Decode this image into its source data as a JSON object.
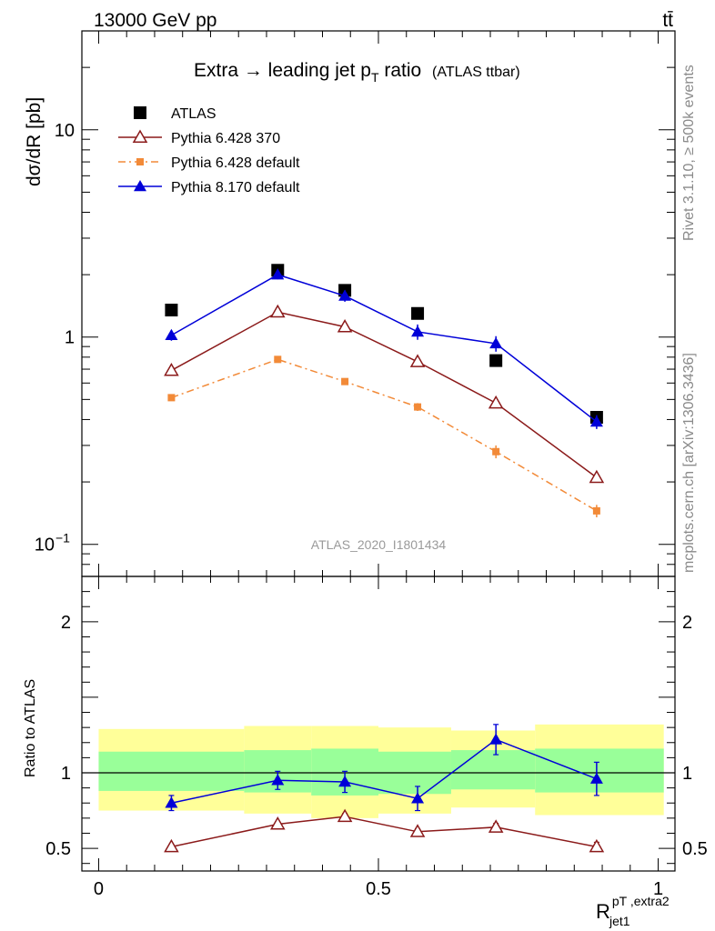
{
  "header": {
    "left_title": "13000 GeV pp",
    "right_title": "tt̄"
  },
  "side_labels": {
    "rivet": "Rivet 3.1.10, ≥ 500k events",
    "mcplots": "mcplots.cern.ch [arXiv:1306.3436]"
  },
  "chart_data": [
    {
      "type": "line",
      "panel": "main",
      "title": "Extra → leading jet p",
      "title_sub": "T",
      "title_tail": " ratio",
      "title_note": "(ATLAS ttbar)",
      "ylabel": "dσ/dR [pb]",
      "watermark": "ATLAS_2020_I1801434",
      "yscale": "log",
      "ylim": [
        0.07,
        30
      ],
      "xlim": [
        -0.03,
        1.03
      ],
      "yticks": [
        {
          "v": 0.1,
          "label": "10",
          "sup": "−1"
        },
        {
          "v": 1,
          "label": "1",
          "sup": ""
        },
        {
          "v": 10,
          "label": "10",
          "sup": ""
        }
      ],
      "legend_position": "top-left",
      "x": [
        0.13,
        0.32,
        0.44,
        0.57,
        0.71,
        0.89
      ],
      "series": [
        {
          "name": "ATLAS",
          "color": "#000000",
          "marker": "square",
          "line": "none",
          "values": [
            1.35,
            2.1,
            1.68,
            1.3,
            0.77,
            0.41
          ],
          "err": [
            0,
            0,
            0,
            0,
            0,
            0
          ]
        },
        {
          "name": "Pythia 6.428 370",
          "color": "#8b1a1a",
          "marker": "triangle-open",
          "line": "solid",
          "values": [
            0.69,
            1.32,
            1.12,
            0.76,
            0.48,
            0.21
          ],
          "err": [
            0.02,
            0.04,
            0.03,
            0.02,
            0.015,
            0.009
          ]
        },
        {
          "name": "Pythia 6.428 default",
          "color": "#f28a38",
          "marker": "square-small",
          "line": "dashdot",
          "values": [
            0.51,
            0.78,
            0.61,
            0.46,
            0.28,
            0.145
          ],
          "err": [
            0.015,
            0.02,
            0.02,
            0.02,
            0.02,
            0.01
          ]
        },
        {
          "name": "Pythia 8.170 default",
          "color": "#0000d8",
          "marker": "triangle",
          "line": "solid",
          "values": [
            1.02,
            2.0,
            1.58,
            1.06,
            0.93,
            0.39
          ],
          "err": [
            0.06,
            0.1,
            0.1,
            0.09,
            0.08,
            0.03
          ]
        }
      ]
    },
    {
      "type": "line",
      "panel": "ratio",
      "ylabel": "Ratio to ATLAS",
      "xlabel": "R",
      "xlabel_sup": "pT ,extra2",
      "xlabel_sub": "jet1",
      "ylim": [
        0.35,
        2.3
      ],
      "xlim": [
        -0.03,
        1.03
      ],
      "yticks": [
        0.5,
        1,
        2
      ],
      "xticks": [
        {
          "v": 0,
          "label": "0"
        },
        {
          "v": 0.5,
          "label": "0.5"
        },
        {
          "v": 1,
          "label": "1"
        }
      ],
      "bins": [
        0.0,
        0.26,
        0.38,
        0.5,
        0.63,
        0.78,
        1.01
      ],
      "band_outer": {
        "color": "#ffff99",
        "lo": [
          0.75,
          0.73,
          0.7,
          0.73,
          0.77,
          0.72
        ],
        "hi": [
          1.29,
          1.31,
          1.31,
          1.3,
          1.28,
          1.32
        ]
      },
      "band_inner": {
        "color": "#99ff99",
        "lo": [
          0.88,
          0.87,
          0.85,
          0.86,
          0.89,
          0.87
        ],
        "hi": [
          1.14,
          1.15,
          1.16,
          1.14,
          1.15,
          1.16
        ]
      },
      "x": [
        0.13,
        0.32,
        0.44,
        0.57,
        0.71,
        0.89
      ],
      "series": [
        {
          "name": "Pythia 6.428 370",
          "color": "#8b1a1a",
          "marker": "triangle-open",
          "values": [
            0.51,
            0.66,
            0.71,
            0.61,
            0.64,
            0.51
          ],
          "err": [
            0.01,
            0.015,
            0.02,
            0.02,
            0.025,
            0.03
          ]
        },
        {
          "name": "Pythia 8.170 default",
          "color": "#0000d8",
          "marker": "triangle",
          "values": [
            0.8,
            0.95,
            0.94,
            0.83,
            1.22,
            0.96
          ],
          "err": [
            0.05,
            0.06,
            0.07,
            0.08,
            0.1,
            0.11
          ]
        }
      ]
    }
  ]
}
